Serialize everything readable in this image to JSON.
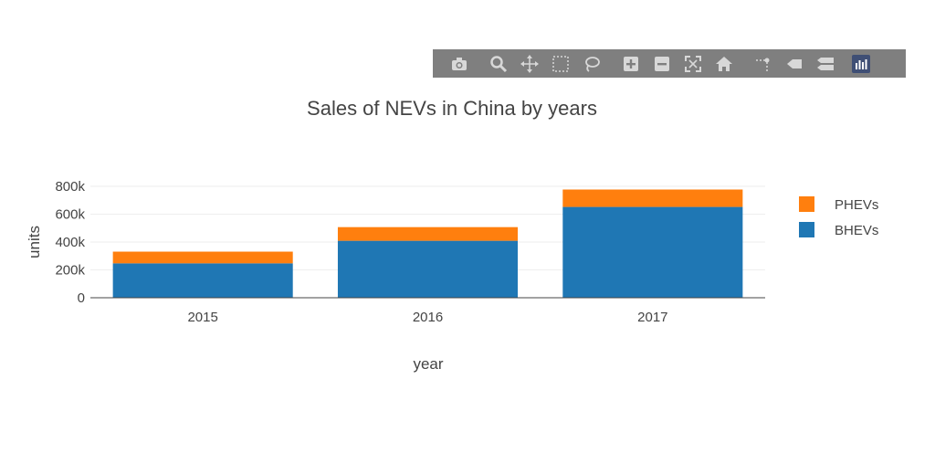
{
  "modebar": {
    "buttons": [
      {
        "icon": "camera-icon",
        "label": "Download plot as png"
      },
      {
        "icon": "zoom-icon",
        "label": "Zoom"
      },
      {
        "icon": "pan-icon",
        "label": "Pan"
      },
      {
        "icon": "box-select-icon",
        "label": "Box Select"
      },
      {
        "icon": "lasso-select-icon",
        "label": "Lasso Select"
      },
      {
        "icon": "zoom-in-icon",
        "label": "Zoom in"
      },
      {
        "icon": "zoom-out-icon",
        "label": "Zoom out"
      },
      {
        "icon": "autoscale-icon",
        "label": "Autoscale"
      },
      {
        "icon": "home-icon",
        "label": "Reset axes"
      },
      {
        "icon": "spike-lines-icon",
        "label": "Toggle Spike Lines"
      },
      {
        "icon": "hover-closest-icon",
        "label": "Show closest data on hover"
      },
      {
        "icon": "hover-compare-icon",
        "label": "Compare data on hover"
      },
      {
        "icon": "plotly-logo-icon",
        "label": "Produced with Plotly"
      }
    ],
    "background": "#7f7f7f",
    "icon_color": "#d8d8d8"
  },
  "chart_data": {
    "type": "bar",
    "stacked": true,
    "title": "Sales of NEVs in China by years",
    "xlabel": "year",
    "ylabel": "units",
    "categories": [
      "2015",
      "2016",
      "2017"
    ],
    "series": [
      {
        "name": "BHEVs",
        "values": [
          247000,
          409000,
          652000
        ],
        "color": "#1f77b4"
      },
      {
        "name": "PHEVs",
        "values": [
          84000,
          98000,
          125000
        ],
        "color": "#ff7f0e"
      }
    ],
    "ylim": [
      0,
      800000
    ],
    "yticks": [
      0,
      200000,
      400000,
      600000,
      800000
    ],
    "ytick_labels": [
      "0",
      "200k",
      "400k",
      "600k",
      "800k"
    ],
    "grid": true,
    "legend_position": "right"
  }
}
